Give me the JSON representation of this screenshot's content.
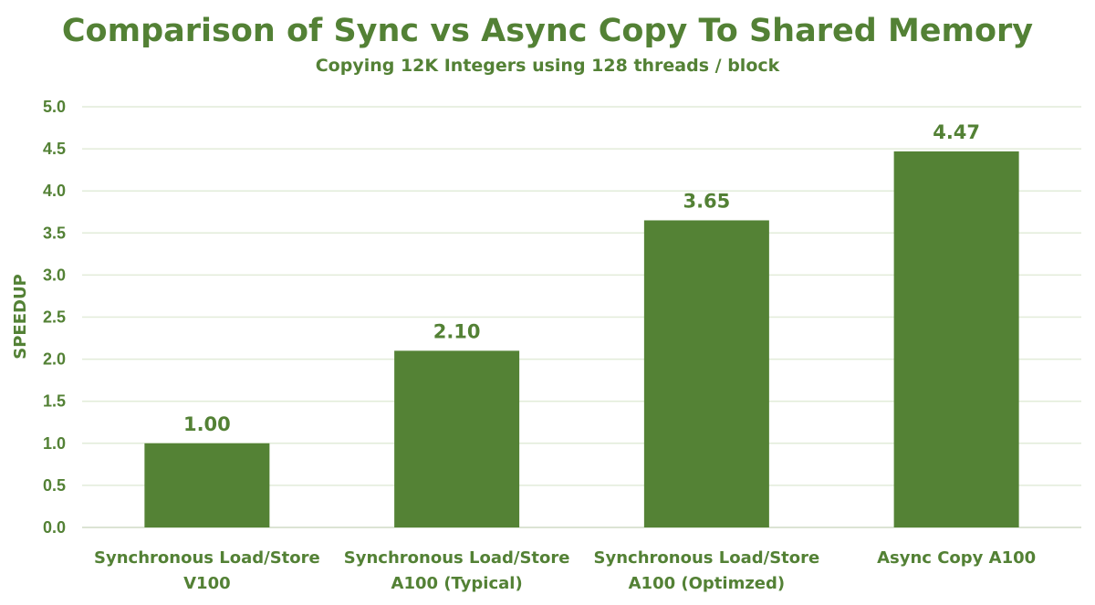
{
  "chart_data": {
    "type": "bar",
    "title": "Comparison of Sync vs Async Copy To Shared Memory",
    "subtitle": "Copying 12K Integers using 128 threads / block",
    "xlabel": "",
    "ylabel": "SPEEDUP",
    "ylim": [
      0,
      5.0
    ],
    "ytick_step": 0.5,
    "yticks": [
      "0.0",
      "0.5",
      "1.0",
      "1.5",
      "2.0",
      "2.5",
      "3.0",
      "3.5",
      "4.0",
      "4.5",
      "5.0"
    ],
    "grid": true,
    "legend": "none",
    "categories": [
      [
        "Synchronous Load/Store",
        "V100"
      ],
      [
        "Synchronous Load/Store",
        "A100 (Typical)"
      ],
      [
        "Synchronous Load/Store",
        "A100 (Optimzed)"
      ],
      [
        "Async Copy A100"
      ]
    ],
    "values": [
      1.0,
      2.1,
      3.65,
      4.47
    ],
    "data_labels": [
      "1.00",
      "2.10",
      "3.65",
      "4.47"
    ],
    "colors": {
      "bar": "#548235",
      "text": "#538135",
      "grid": "#e2ecd9",
      "axis": "#d0dcc5"
    }
  }
}
